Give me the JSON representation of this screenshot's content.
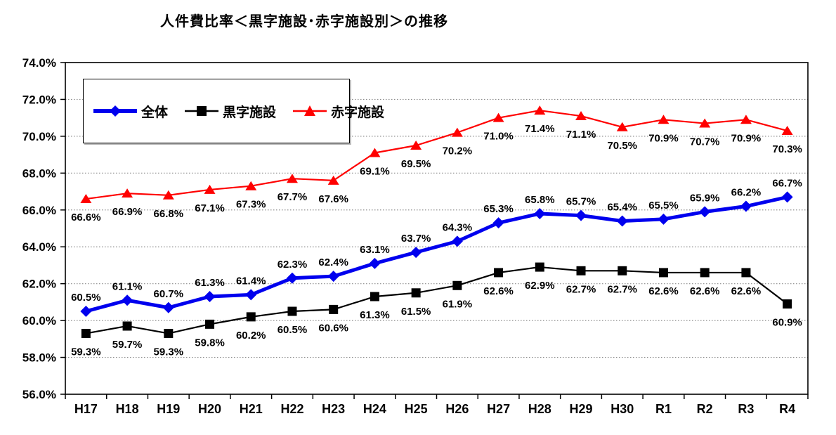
{
  "title": "人件費比率＜黒字施設･赤字施設別＞の推移",
  "chart_data": {
    "type": "line",
    "title": "人件費比率＜黒字施設･赤字施設別＞の推移",
    "categories": [
      "H17",
      "H18",
      "H19",
      "H20",
      "H21",
      "H22",
      "H23",
      "H24",
      "H25",
      "H26",
      "H27",
      "H28",
      "H29",
      "H30",
      "R1",
      "R2",
      "R3",
      "R4"
    ],
    "series": [
      {
        "name": "全体",
        "marker": "diamond",
        "color": "#0000EE",
        "line_width": 5,
        "label_position": "above",
        "values": [
          60.5,
          61.1,
          60.7,
          61.3,
          61.4,
          62.3,
          62.4,
          63.1,
          63.7,
          64.3,
          65.3,
          65.8,
          65.7,
          65.4,
          65.5,
          65.9,
          66.2,
          66.7
        ]
      },
      {
        "name": "黒字施設",
        "marker": "square",
        "color": "#000000",
        "line_width": 2.2,
        "label_position": "below",
        "values": [
          59.3,
          59.7,
          59.3,
          59.8,
          60.2,
          60.5,
          60.6,
          61.3,
          61.5,
          61.9,
          62.6,
          62.9,
          62.7,
          62.7,
          62.6,
          62.6,
          62.6,
          60.9
        ]
      },
      {
        "name": "赤字施設",
        "marker": "triangle",
        "color": "#FF0000",
        "line_width": 2.2,
        "label_position": "below",
        "values": [
          66.6,
          66.9,
          66.8,
          67.1,
          67.3,
          67.7,
          67.6,
          69.1,
          69.5,
          70.2,
          71.0,
          71.4,
          71.1,
          70.5,
          70.9,
          70.7,
          70.9,
          70.3
        ]
      }
    ],
    "ylim": [
      56,
      74
    ],
    "y_tick_step": 2,
    "y_tick_labels": [
      "56.0%",
      "58.0%",
      "60.0%",
      "62.0%",
      "64.0%",
      "66.0%",
      "68.0%",
      "70.0%",
      "72.0%",
      "74.0%"
    ],
    "y_tick_values": [
      56,
      58,
      60,
      62,
      64,
      66,
      68,
      70,
      72,
      74
    ],
    "data_label_suffix": "%",
    "grid": "horizontal-dotted",
    "grid_color": "#8C8C8C",
    "frame_color": "#000000",
    "legend_position": "top-left-inside"
  }
}
